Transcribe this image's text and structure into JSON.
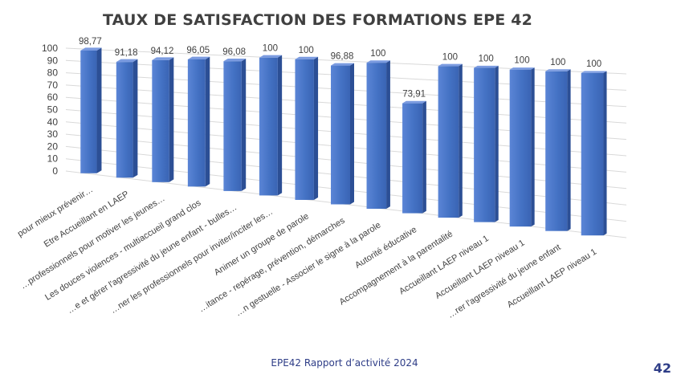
{
  "chart_data": {
    "type": "bar",
    "title": "TAUX DE SATISFACTION DES FORMATIONS EPE 42",
    "xlabel": "",
    "ylabel": "",
    "ylim": [
      0,
      100
    ],
    "yticks": [
      0,
      10,
      20,
      30,
      40,
      50,
      60,
      70,
      80,
      90,
      100
    ],
    "grid": true,
    "style": "3d-column",
    "bar_color": "#4472c4",
    "categories": [
      "pour mieux prévenir…",
      "Etre Accueillant en LAEP",
      "…professionnels pour motiver les jeunes…",
      "Les douces violences - multiaccueil grand clos",
      "…e et gérer l'agressivité du jeune enfant - bulles…",
      "…ner les professionnels pour inviter/inciter les…",
      "Animer un groupe de parole",
      "…itance - repérage, prévention, démarches",
      "…n gestuelle - Associer le signe à la parole",
      "Autorité éducative",
      "Accompagnement à la parentalité",
      "Accueillant LAEP niveau 1",
      "Accueillant LAEP niveau 1",
      "…rer l'agressivité du jeune enfant",
      "Accueillant LAEP niveau 1"
    ],
    "values": [
      98.77,
      91.18,
      94.12,
      96.05,
      96.08,
      100,
      100,
      96.88,
      100,
      73.91,
      100,
      100,
      100,
      100,
      100
    ],
    "data_labels": [
      "98,77",
      "91,18",
      "94,12",
      "96,05",
      "96,08",
      "100",
      "100",
      "96,88",
      "100",
      "73,91",
      "100",
      "100",
      "100",
      "100",
      "100"
    ]
  },
  "footer": {
    "text": "EPE42 Rapport d’activité 2024",
    "page_number": "42"
  }
}
